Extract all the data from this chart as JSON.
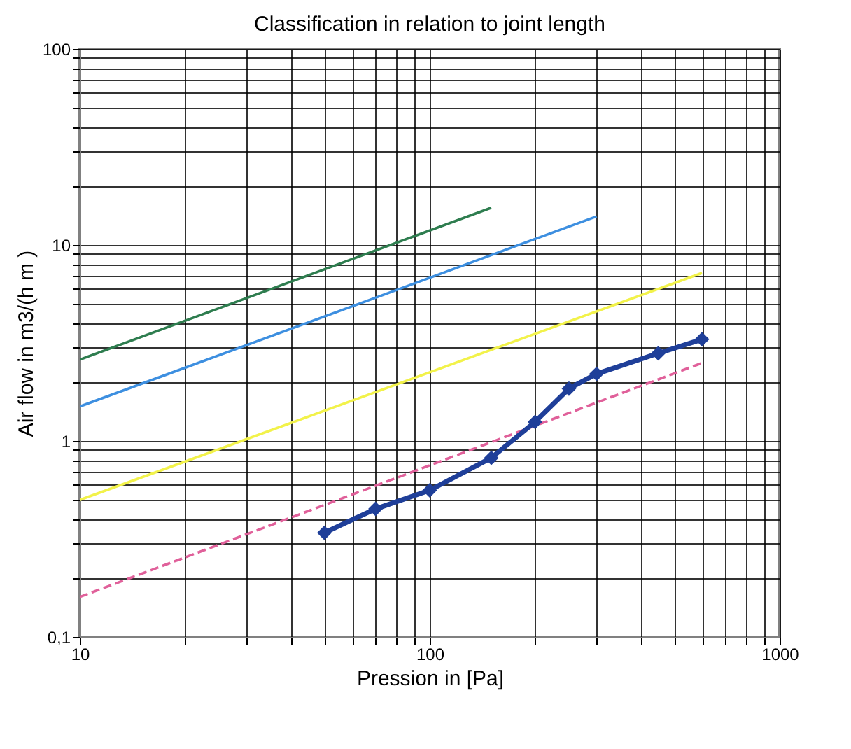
{
  "chart_data": {
    "type": "line",
    "title": "Classification in relation to joint length",
    "xlabel": "Pression in [Pa]",
    "ylabel": "Air flow in m3/(h m )",
    "log": "xy",
    "grid": true,
    "xlim": [
      10,
      1000
    ],
    "ylim": [
      0.1,
      100
    ],
    "xticks": [
      10,
      {
        "value": 20,
        "label": null
      },
      {
        "value": 30,
        "label": null
      },
      {
        "value": 40,
        "label": null
      },
      {
        "value": 50,
        "label": null
      },
      {
        "value": 60,
        "label": null
      },
      {
        "value": 70,
        "label": null
      },
      {
        "value": 80,
        "label": null
      },
      {
        "value": 90,
        "label": null
      },
      100,
      {
        "value": 200,
        "label": null
      },
      {
        "value": 300,
        "label": null
      },
      {
        "value": 400,
        "label": null
      },
      {
        "value": 500,
        "label": null
      },
      {
        "value": 600,
        "label": null
      },
      {
        "value": 700,
        "label": null
      },
      {
        "value": 800,
        "label": null
      },
      {
        "value": 900,
        "label": null
      },
      1000
    ],
    "yticks": [
      {
        "value": 0.1,
        "label": "0,1"
      },
      {
        "value": 0.2,
        "label": null
      },
      {
        "value": 0.3,
        "label": null
      },
      {
        "value": 0.4,
        "label": null
      },
      {
        "value": 0.5,
        "label": null
      },
      {
        "value": 0.6,
        "label": null
      },
      {
        "value": 0.7,
        "label": null
      },
      {
        "value": 0.8,
        "label": null
      },
      {
        "value": 0.9,
        "label": null
      },
      1,
      {
        "value": 2,
        "label": null
      },
      {
        "value": 3,
        "label": null
      },
      {
        "value": 4,
        "label": null
      },
      {
        "value": 5,
        "label": null
      },
      {
        "value": 6,
        "label": null
      },
      {
        "value": 7,
        "label": null
      },
      {
        "value": 8,
        "label": null
      },
      {
        "value": 9,
        "label": null
      },
      10,
      {
        "value": 20,
        "label": null
      },
      {
        "value": 30,
        "label": null
      },
      {
        "value": 40,
        "label": null
      },
      {
        "value": 50,
        "label": null
      },
      {
        "value": 60,
        "label": null
      },
      {
        "value": 70,
        "label": null
      },
      {
        "value": 80,
        "label": null
      },
      {
        "value": 90,
        "label": null
      },
      100
    ],
    "series": [
      {
        "color": "#2e7d4f",
        "x": [
          10,
          150
        ],
        "values": [
          2.6,
          15.5
        ],
        "marker": "none",
        "line_style": "solid"
      },
      {
        "color": "#3d8fe0",
        "x": [
          10,
          300
        ],
        "values": [
          1.5,
          14
        ],
        "marker": "none",
        "line_style": "solid"
      },
      {
        "color": "#f2f24a",
        "x": [
          10,
          600
        ],
        "values": [
          0.5,
          7.2
        ],
        "marker": "none",
        "line_style": "solid"
      },
      {
        "color": "#e0609a",
        "x": [
          10,
          600
        ],
        "values": [
          0.16,
          2.5
        ],
        "marker": "none",
        "line_style": "dashed"
      },
      {
        "color": "#1f3f99",
        "x": [
          50,
          70,
          100,
          150,
          200,
          250,
          300,
          450,
          600
        ],
        "values": [
          0.34,
          0.45,
          0.56,
          0.82,
          1.25,
          1.85,
          2.2,
          2.8,
          3.3
        ],
        "marker": "diamond",
        "line_style": "solid"
      }
    ]
  }
}
